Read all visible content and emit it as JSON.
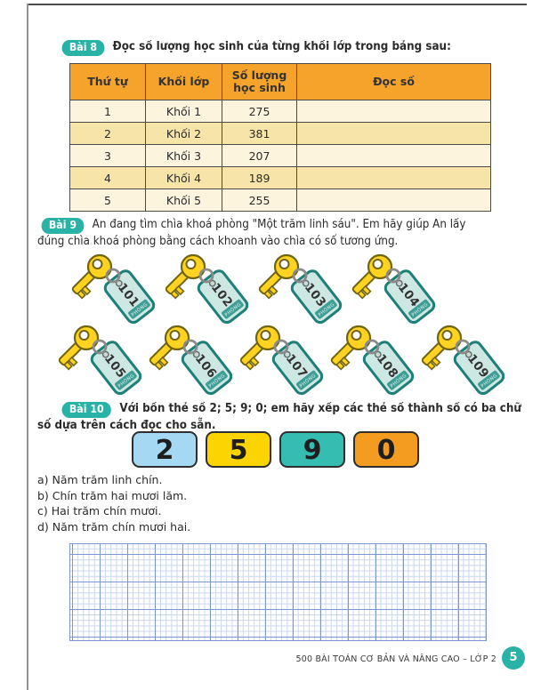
{
  "colors": {
    "badge_teal": "#29B2A6",
    "table_header_orange": "#F5A32B",
    "row_light": "#FDF4DE",
    "row_dark": "#F7E4A9",
    "grid_major_blue": "#7B99D0",
    "grid_minor_blue": "#C9D6EF",
    "key_gold": "#FFD31F",
    "tag_mint": "#CDE8E2",
    "tag_teal_border": "#1E7F78"
  },
  "exercise8": {
    "badge": "Bài 8",
    "title": "Đọc số lượng học sinh của từng khối lớp trong bảng sau:",
    "table": {
      "headers": [
        "Thứ tự",
        "Khối lớp",
        "Số lượng học sinh",
        "Đọc số"
      ],
      "rows": [
        [
          "1",
          "Khối 1",
          "275",
          ""
        ],
        [
          "2",
          "Khối 2",
          "381",
          ""
        ],
        [
          "3",
          "Khối 3",
          "207",
          ""
        ],
        [
          "4",
          "Khối 4",
          "189",
          ""
        ],
        [
          "5",
          "Khối 5",
          "255",
          ""
        ]
      ]
    }
  },
  "exercise9": {
    "badge": "Bài 9",
    "text_lines": [
      "An đang tìm chìa khoá phòng \"Một trăm linh sáu\". Em hãy giúp An lấy",
      "đúng chìa khoá phòng bằng cách khoanh vào chìa có số tương ứng."
    ],
    "tag_label": "PHÒNG",
    "key_rows": [
      [
        "101",
        "102",
        "103",
        "104"
      ],
      [
        "105",
        "106",
        "107",
        "108",
        "109"
      ]
    ]
  },
  "exercise10": {
    "badge": "Bài 10",
    "text_lines": [
      "Với bốn thẻ số 2; 5; 9; 0; em hãy xếp các thẻ số thành số có ba chữ",
      "số dựa trên cách đọc cho sẵn."
    ],
    "cards": [
      {
        "digit": "2",
        "color": "#A5D9F3"
      },
      {
        "digit": "5",
        "color": "#FBD402"
      },
      {
        "digit": "9",
        "color": "#35BDB2"
      },
      {
        "digit": "0",
        "color": "#F49C20"
      }
    ],
    "answers": [
      "a) Năm trăm linh chín.",
      "b) Chín trăm hai mươi lăm.",
      "c) Hai trăm chín mươi.",
      "d) Năm trăm chín mươi hai."
    ]
  },
  "footer": {
    "text": "500 BÀI TOÁN CƠ BẢN VÀ NÂNG CAO – LỚP 2",
    "page_number": "5"
  }
}
